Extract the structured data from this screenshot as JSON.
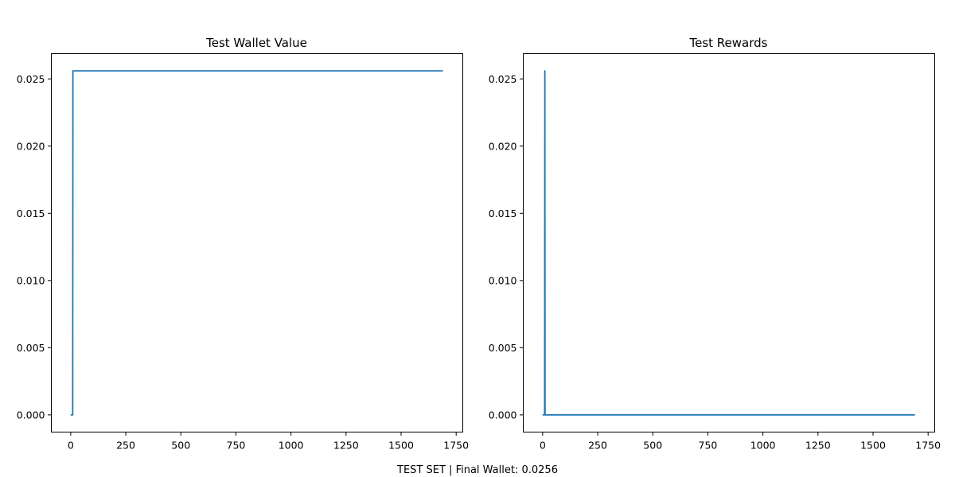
{
  "figure": {
    "caption": "TEST SET | Final Wallet: 0.0256",
    "line_color": "#1f77b4"
  },
  "chart_data": [
    {
      "type": "line",
      "title": "Test Wallet Value",
      "xlabel": "",
      "ylabel": "",
      "xlim": [
        -88,
        1780
      ],
      "ylim": [
        -0.00128,
        0.02688
      ],
      "xticks": [
        0,
        250,
        500,
        750,
        1000,
        1250,
        1500,
        1750
      ],
      "xtick_labels": [
        "0",
        "250",
        "500",
        "750",
        "1000",
        "1250",
        "1500",
        "1750"
      ],
      "yticks": [
        0.0,
        0.005,
        0.01,
        0.015,
        0.02,
        0.025
      ],
      "ytick_labels": [
        "0.000",
        "0.005",
        "0.010",
        "0.015",
        "0.020",
        "0.025"
      ],
      "grid": false,
      "series": [
        {
          "name": "",
          "x": [
            0,
            9,
            10,
            1690
          ],
          "y": [
            0.0,
            0.0,
            0.0256,
            0.0256
          ]
        }
      ]
    },
    {
      "type": "line",
      "title": "Test Rewards",
      "xlabel": "",
      "ylabel": "",
      "xlim": [
        -88,
        1780
      ],
      "ylim": [
        -0.00128,
        0.02688
      ],
      "xticks": [
        0,
        250,
        500,
        750,
        1000,
        1250,
        1500,
        1750
      ],
      "xtick_labels": [
        "0",
        "250",
        "500",
        "750",
        "1000",
        "1250",
        "1500",
        "1750"
      ],
      "yticks": [
        0.0,
        0.005,
        0.01,
        0.015,
        0.02,
        0.025
      ],
      "ytick_labels": [
        "0.000",
        "0.005",
        "0.010",
        "0.015",
        "0.020",
        "0.025"
      ],
      "grid": false,
      "series": [
        {
          "name": "",
          "x": [
            0,
            9,
            10,
            11,
            1690
          ],
          "y": [
            0.0,
            0.0,
            0.0256,
            0.0,
            0.0
          ]
        }
      ]
    }
  ]
}
